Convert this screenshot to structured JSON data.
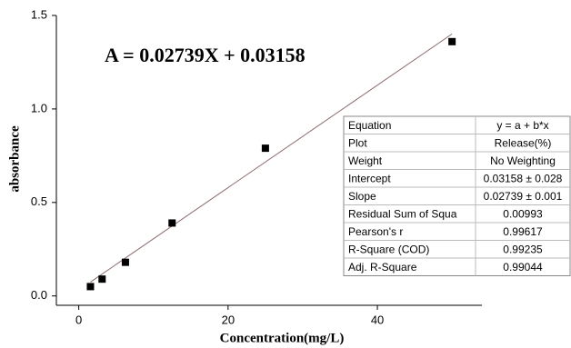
{
  "chart_data": {
    "type": "scatter",
    "annotation": "A = 0.02739X + 0.03158",
    "x_label": "Concentration(mg/L)",
    "y_label": "absorbance",
    "x": [
      1.5625,
      3.125,
      6.25,
      12.5,
      25,
      50
    ],
    "values": [
      0.05,
      0.09,
      0.18,
      0.39,
      0.79,
      1.36
    ],
    "color": "#000000",
    "fit": {
      "intercept": 0.03158,
      "slope": 0.02739,
      "color": "#8b6b6b"
    },
    "xlim": [
      -3,
      54
    ],
    "ylim": [
      -0.05,
      1.5
    ],
    "xticks": [
      0,
      20,
      40
    ],
    "yticks": [
      {
        "value": 0,
        "label": "0.0"
      },
      {
        "value": 0.5,
        "label": "0.5"
      },
      {
        "value": 1,
        "label": "1.0"
      },
      {
        "value": 1.5,
        "label": "1.5"
      }
    ]
  },
  "table": {
    "rows": [
      [
        "Equation",
        "y = a + b*x"
      ],
      [
        "Plot",
        "Release(%)"
      ],
      [
        "Weight",
        "No Weighting"
      ],
      [
        "Intercept",
        "0.03158 ± 0.028"
      ],
      [
        "Slope",
        "0.02739 ± 0.001"
      ],
      [
        "Residual Sum of Squa",
        "0.00993"
      ],
      [
        "Pearson's r",
        "0.99617"
      ],
      [
        "R-Square (COD)",
        "0.99235"
      ],
      [
        "Adj. R-Square",
        "0.99044"
      ]
    ]
  }
}
